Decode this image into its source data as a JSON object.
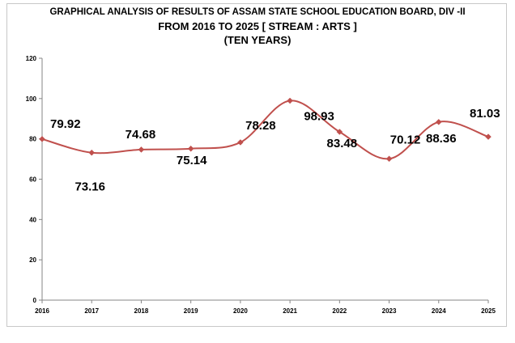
{
  "chart_data": {
    "type": "line",
    "title_lines": [
      "GRAPHICAL ANALYSIS OF RESULTS OF ASSAM STATE SCHOOL EDUCATION BOARD, DIV -II",
      "FROM 2016 TO 2025 [ STREAM : ARTS ]",
      "(TEN YEARS)"
    ],
    "categories": [
      "2016",
      "2017",
      "2018",
      "2019",
      "2020",
      "2021",
      "2022",
      "2023",
      "2024",
      "2025"
    ],
    "series": [
      {
        "values": [
          79.92,
          73.16,
          74.68,
          75.14,
          78.28,
          98.93,
          83.48,
          70.12,
          88.36,
          81.03
        ],
        "data_labels": [
          "79.92",
          "73.16",
          "74.68",
          "75.14",
          "78.28",
          "98.93",
          "83.48",
          "70.12",
          "88.36",
          "81.03"
        ]
      }
    ],
    "ylim": [
      0,
      120
    ],
    "yticks": [
      "0",
      "20",
      "40",
      "60",
      "80",
      "100",
      "120"
    ],
    "grid": false,
    "legend": "none",
    "line_color": "#c0504d",
    "marker": "diamond",
    "smooth": true
  }
}
